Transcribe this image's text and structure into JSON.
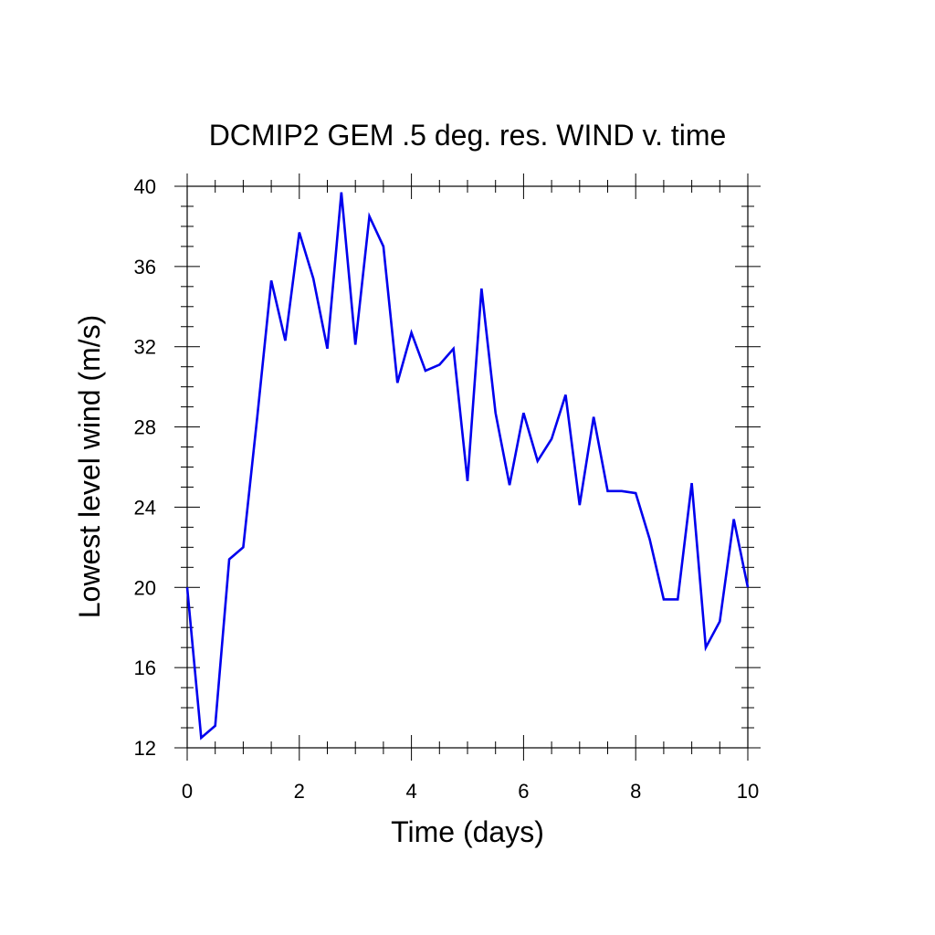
{
  "chart_data": {
    "type": "line",
    "title": "DCMIP2 GEM .5 deg. res. WIND v. time",
    "xlabel": "Time (days)",
    "ylabel": "Lowest level wind (m/s)",
    "xlim": [
      0,
      10
    ],
    "ylim": [
      12,
      40
    ],
    "x_ticks": [
      0,
      2,
      4,
      6,
      8,
      10
    ],
    "y_ticks": [
      12,
      16,
      20,
      24,
      28,
      32,
      36,
      40
    ],
    "x_tick_labels": [
      "0",
      "2",
      "4",
      "6",
      "8",
      "10"
    ],
    "y_tick_labels": [
      "12",
      "16",
      "20",
      "24",
      "28",
      "32",
      "36",
      "40"
    ],
    "x_minor_step": 0.5,
    "y_minor_step": 1,
    "grid": false,
    "line_color": "#0000ee",
    "series": [
      {
        "x": [
          0,
          0.25,
          0.5,
          0.75,
          1.0,
          1.25,
          1.5,
          1.75,
          2.0,
          2.25,
          2.5,
          2.75,
          3.0,
          3.25,
          3.5,
          3.75,
          4.0,
          4.25,
          4.5,
          4.75,
          5.0,
          5.25,
          5.5,
          5.75,
          6.0,
          6.25,
          6.5,
          6.75,
          7.0,
          7.25,
          7.5,
          7.75,
          8.0,
          8.25,
          8.5,
          8.75,
          9.0,
          9.25,
          9.5,
          9.75,
          10.0
        ],
        "values": [
          20.0,
          12.5,
          13.1,
          21.4,
          22.0,
          28.5,
          35.3,
          32.3,
          37.7,
          35.4,
          31.9,
          39.7,
          32.1,
          38.5,
          37.0,
          30.2,
          32.7,
          30.8,
          31.1,
          31.9,
          25.3,
          34.9,
          28.7,
          25.1,
          28.7,
          26.3,
          27.4,
          29.6,
          24.1,
          28.5,
          24.8,
          24.8,
          24.7,
          22.4,
          19.4,
          19.4,
          25.2,
          17.0,
          18.3,
          23.4,
          20.0
        ]
      }
    ]
  }
}
